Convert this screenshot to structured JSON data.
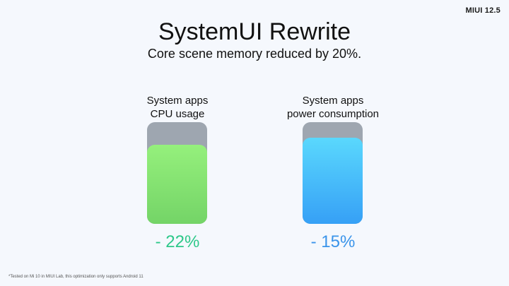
{
  "brand": "MIUI 12.5",
  "title": "SystemUI Rewrite",
  "subtitle": "Core scene memory reduced by 20%.",
  "footnote": "*Tested on Mi 10 in MIUI Lab, this optimization only supports Android 11",
  "chart_data": {
    "type": "bar",
    "categories": [
      "System apps CPU usage",
      "System apps power consumption"
    ],
    "labels": [
      [
        "System apps",
        "CPU usage"
      ],
      [
        "System apps",
        "power consumption"
      ]
    ],
    "before": [
      100,
      100
    ],
    "after": [
      78,
      85
    ],
    "change_labels": [
      "- 22%",
      "- 15%"
    ],
    "colors": {
      "before": "#9ea6b0",
      "after": [
        [
          "#95f07c",
          "#74d467"
        ],
        [
          "#5ad8fd",
          "#36a0f6"
        ]
      ],
      "change_text": [
        "#2ec88a",
        "#3a94ea"
      ]
    }
  }
}
